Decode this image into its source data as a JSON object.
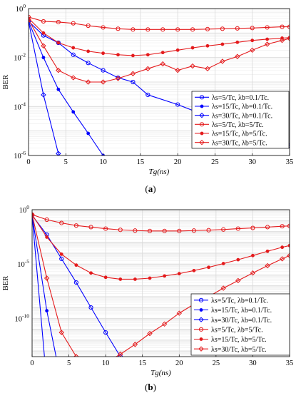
{
  "figure": {
    "panels": [
      {
        "label": "(a)",
        "label_letter": "a"
      },
      {
        "label": "(b)",
        "label_letter": "b"
      }
    ]
  },
  "colors": {
    "blue": "#0000ff",
    "red": "#e41a1c",
    "grid": "#d9d9d9"
  },
  "chart_data": [
    {
      "type": "line",
      "panel": "(a)",
      "xlabel": "Tg(ns)",
      "ylabel": "BER",
      "xlim": [
        0,
        35
      ],
      "ylim": [
        1e-06,
        1
      ],
      "yscale": "log",
      "grid": true,
      "legend_position": "lower-right",
      "xticks": [
        "0",
        "5",
        "10",
        "15",
        "20",
        "25",
        "30",
        "35"
      ],
      "yticks": [
        {
          "base": "10",
          "exp": "0",
          "value": 1
        },
        {
          "base": "10",
          "exp": "-2",
          "value": 0.01
        },
        {
          "base": "10",
          "exp": "-4",
          "value": 0.0001
        },
        {
          "base": "10",
          "exp": "-6",
          "value": 1e-06
        }
      ],
      "series": [
        {
          "name": "λs=5/Tc, λb=0.1/Tc.",
          "color": "#0000ff",
          "marker": "circle",
          "x": [
            0,
            2,
            4,
            6,
            8,
            10,
            12,
            14,
            16,
            20,
            24,
            28,
            35
          ],
          "y": [
            0.3,
            0.08,
            0.04,
            0.013,
            0.006,
            0.003,
            0.0015,
            0.001,
            0.0003,
            0.00012,
            4e-05,
            1.2e-05,
            2.5e-06
          ]
        },
        {
          "name": "λs=15/Tc, λb=0.1/Tc.",
          "color": "#0000ff",
          "marker": "dot",
          "x": [
            0,
            2,
            4,
            6,
            8,
            10,
            12
          ],
          "y": [
            0.3,
            0.01,
            0.0005,
            6e-05,
            8e-06,
            1e-06,
            1e-07
          ]
        },
        {
          "name": "λs=30/Tc, λb=0.1/Tc.",
          "color": "#0000ff",
          "marker": "diamond",
          "x": [
            0,
            2,
            4,
            6
          ],
          "y": [
            0.3,
            0.0003,
            1.2e-06,
            1e-08
          ]
        },
        {
          "name": "λs=5/Tc, λb=5/Tc.",
          "color": "#e41a1c",
          "marker": "circle",
          "x": [
            0,
            2,
            4,
            6,
            8,
            10,
            12,
            14,
            16,
            18,
            20,
            22,
            24,
            26,
            28,
            30,
            32,
            34,
            35
          ],
          "y": [
            0.45,
            0.3,
            0.28,
            0.25,
            0.2,
            0.17,
            0.15,
            0.14,
            0.14,
            0.14,
            0.14,
            0.14,
            0.145,
            0.15,
            0.155,
            0.16,
            0.17,
            0.18,
            0.18
          ]
        },
        {
          "name": "λs=15/Tc, λb=5/Tc.",
          "color": "#e41a1c",
          "marker": "dot",
          "x": [
            0,
            2,
            4,
            6,
            8,
            10,
            12,
            14,
            16,
            18,
            20,
            22,
            24,
            26,
            28,
            30,
            32,
            34,
            35
          ],
          "y": [
            0.4,
            0.1,
            0.04,
            0.025,
            0.018,
            0.015,
            0.013,
            0.012,
            0.013,
            0.016,
            0.02,
            0.025,
            0.03,
            0.035,
            0.042,
            0.05,
            0.056,
            0.062,
            0.065
          ]
        },
        {
          "name": "λs=30/Tc, λb=5/Tc.",
          "color": "#e41a1c",
          "marker": "diamond",
          "x": [
            0,
            2,
            4,
            6,
            8,
            10,
            12,
            14,
            16,
            18,
            20,
            22,
            24,
            26,
            28,
            30,
            32,
            34,
            35
          ],
          "y": [
            0.35,
            0.03,
            0.003,
            0.0015,
            0.001,
            0.001,
            0.0014,
            0.0022,
            0.0035,
            0.0055,
            0.003,
            0.0045,
            0.0035,
            0.007,
            0.011,
            0.02,
            0.035,
            0.05,
            0.06
          ]
        }
      ]
    },
    {
      "type": "line",
      "panel": "(b)",
      "xlabel": "Tg(ns)",
      "ylabel": "BER",
      "xlim": [
        0,
        35
      ],
      "ylim": [
        3e-14,
        1
      ],
      "yscale": "log",
      "grid": true,
      "legend_position": "lower-right",
      "xticks": [
        "0",
        "5",
        "10",
        "15",
        "20",
        "25",
        "30",
        "35"
      ],
      "yticks": [
        {
          "base": "10",
          "exp": "0",
          "value": 1
        },
        {
          "base": "10",
          "exp": "-5",
          "value": 1e-05
        },
        {
          "base": "10",
          "exp": "-10",
          "value": 1e-10
        }
      ],
      "series": [
        {
          "name": "λs=5/Tc, λb=0.1/Tc.",
          "color": "#0000ff",
          "marker": "circle",
          "x": [
            0,
            2,
            4,
            6,
            8,
            10,
            12,
            14
          ],
          "y": [
            0.3,
            0.005,
            3e-05,
            2e-07,
            1e-09,
            5e-12,
            3e-14,
            1e-15
          ]
        },
        {
          "name": "λs=15/Tc, λb=0.1/Tc.",
          "color": "#0000ff",
          "marker": "dot",
          "x": [
            0,
            2,
            4
          ],
          "y": [
            0.3,
            5e-10,
            1e-16
          ]
        },
        {
          "name": "λs=30/Tc, λb=0.1/Tc.",
          "color": "#0000ff",
          "marker": "diamond",
          "x": [
            0,
            2
          ],
          "y": [
            0.3,
            1e-16
          ]
        },
        {
          "name": "λs=5/Tc, λb=5/Tc.",
          "color": "#e41a1c",
          "marker": "circle",
          "x": [
            0,
            2,
            4,
            6,
            8,
            10,
            12,
            14,
            16,
            18,
            20,
            22,
            24,
            26,
            28,
            30,
            32,
            34,
            35
          ],
          "y": [
            0.35,
            0.12,
            0.06,
            0.035,
            0.025,
            0.018,
            0.014,
            0.012,
            0.011,
            0.011,
            0.011,
            0.012,
            0.013,
            0.015,
            0.018,
            0.021,
            0.025,
            0.03,
            0.032
          ]
        },
        {
          "name": "λs=15/Tc, λb=5/Tc.",
          "color": "#e41a1c",
          "marker": "dot",
          "x": [
            0,
            2,
            4,
            6,
            8,
            10,
            12,
            14,
            16,
            18,
            20,
            22,
            24,
            26,
            28,
            30,
            32,
            34,
            35
          ],
          "y": [
            0.35,
            0.003,
            8e-05,
            8e-06,
            1.5e-06,
            6e-07,
            4e-07,
            4e-07,
            5e-07,
            8e-07,
            1.3e-06,
            2.5e-06,
            5e-06,
            1.1e-05,
            2.5e-05,
            6e-05,
            0.00015,
            0.00035,
            0.0005
          ]
        },
        {
          "name": "λs=30/Tc, λb=5/Tc.",
          "color": "#e41a1c",
          "marker": "diamond",
          "x": [
            0,
            2,
            4,
            6,
            8,
            10,
            12,
            14,
            16,
            18,
            20,
            22,
            24,
            26,
            28,
            30,
            32,
            34,
            35
          ],
          "y": [
            0.35,
            5e-07,
            5e-12,
            3e-14,
            5e-15,
            8e-15,
            5e-14,
            4e-13,
            4e-12,
            3e-11,
            3e-10,
            2e-09,
            1e-08,
            6e-08,
            3e-07,
            1.5e-06,
            7e-06,
            3e-05,
            6e-05
          ]
        }
      ]
    }
  ]
}
